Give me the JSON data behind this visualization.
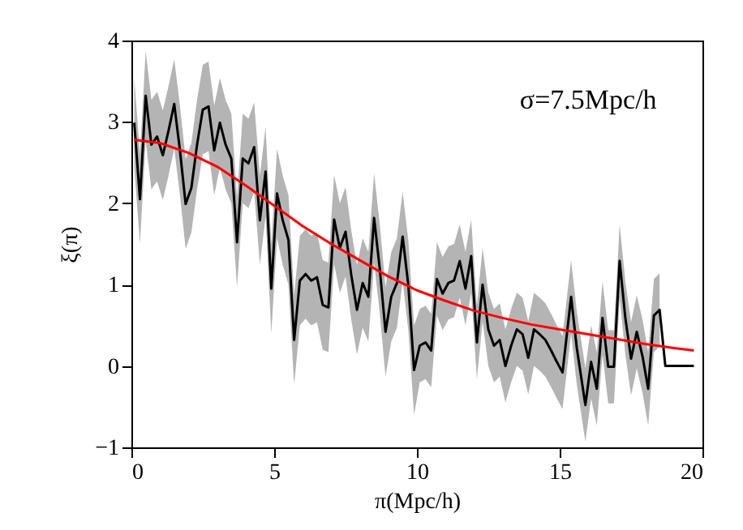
{
  "chart_data": {
    "type": "line",
    "xlabel": "π(Mpc/h)",
    "ylabel": "ξ(π)",
    "annotations": [
      "σ=7.5Mpc/h"
    ],
    "xlim": [
      0,
      20
    ],
    "xticks": [
      0,
      5,
      10,
      15,
      20
    ],
    "ylim": [
      -1,
      4
    ],
    "yticks": [
      -1,
      0,
      1,
      2,
      3,
      4
    ],
    "grid": false,
    "series": [
      {
        "color": "#000000",
        "x": [
          0.1,
          0.3,
          0.5,
          0.7,
          0.9,
          1.1,
          1.3,
          1.5,
          1.7,
          1.9,
          2.1,
          2.3,
          2.5,
          2.7,
          2.9,
          3.1,
          3.3,
          3.5,
          3.7,
          3.9,
          4.1,
          4.3,
          4.5,
          4.7,
          4.9,
          5.1,
          5.3,
          5.5,
          5.7,
          5.9,
          6.1,
          6.3,
          6.5,
          6.7,
          6.9,
          7.1,
          7.3,
          7.5,
          7.7,
          7.9,
          8.1,
          8.3,
          8.5,
          8.7,
          8.9,
          9.1,
          9.3,
          9.5,
          9.7,
          9.9,
          10.1,
          10.3,
          10.5,
          10.7,
          10.9,
          11.1,
          11.3,
          11.5,
          11.7,
          11.9,
          12.1,
          12.3,
          12.5,
          12.7,
          12.9,
          13.1,
          13.3,
          13.5,
          13.7,
          13.9,
          14.1,
          14.3,
          14.5,
          14.7,
          14.9,
          15.1,
          15.4,
          15.6,
          15.9,
          16.1,
          16.3,
          16.5,
          16.7,
          16.9,
          17.1,
          17.3,
          17.5,
          17.7,
          17.9,
          18.1,
          18.3,
          18.5,
          18.7,
          19.7
        ],
        "values": [
          2.99,
          2.05,
          3.32,
          2.72,
          2.82,
          2.59,
          2.89,
          3.22,
          2.65,
          1.99,
          2.19,
          2.72,
          3.15,
          3.19,
          2.65,
          2.99,
          2.72,
          2.55,
          1.52,
          2.55,
          2.49,
          2.69,
          1.79,
          2.39,
          0.95,
          2.12,
          1.79,
          1.55,
          0.32,
          1.05,
          1.13,
          1.05,
          1.09,
          0.75,
          0.72,
          1.8,
          1.45,
          1.65,
          1.12,
          0.69,
          1.02,
          0.85,
          1.82,
          1.19,
          0.42,
          0.85,
          1.02,
          1.59,
          0.99,
          -0.05,
          0.25,
          0.29,
          0.19,
          1.07,
          0.89,
          1.02,
          1.05,
          1.29,
          0.95,
          1.35,
          0.29,
          1.0,
          0.45,
          0.25,
          0.32,
          0.0,
          0.25,
          0.45,
          0.39,
          0.1,
          0.45,
          0.39,
          0.32,
          0.19,
          0.05,
          -0.08,
          0.85,
          0.22,
          -0.48,
          0.05,
          -0.28,
          0.59,
          -0.01,
          -0.01,
          1.29,
          0.59,
          0.09,
          0.42,
          0.12,
          -0.28,
          0.62,
          0.69,
          0.0,
          0.0
        ],
        "lower": [
          2.44,
          1.5,
          2.77,
          2.17,
          2.27,
          2.04,
          2.34,
          2.67,
          2.1,
          1.44,
          1.64,
          2.17,
          2.6,
          2.64,
          2.1,
          2.44,
          2.17,
          2.0,
          0.97,
          2.0,
          1.94,
          2.14,
          1.24,
          1.84,
          0.4,
          1.57,
          1.24,
          1.0,
          -0.23,
          0.5,
          0.58,
          0.5,
          0.54,
          0.2,
          0.17,
          1.25,
          0.9,
          1.1,
          0.57,
          0.14,
          0.47,
          0.3,
          1.27,
          0.64,
          -0.13,
          0.3,
          0.47,
          1.04,
          0.44,
          -0.6,
          -0.2,
          -0.16,
          -0.26,
          0.62,
          0.44,
          0.57,
          0.6,
          0.84,
          0.5,
          0.9,
          -0.16,
          0.55,
          0.0,
          -0.2,
          -0.13,
          -0.45,
          -0.2,
          0.0,
          -0.06,
          -0.35,
          0.0,
          -0.06,
          -0.13,
          -0.26,
          -0.4,
          -0.53,
          0.4,
          -0.23,
          -0.93,
          -0.4,
          -0.73,
          0.14,
          -0.46,
          -0.46,
          0.84,
          0.14,
          -0.36,
          -0.03,
          -0.33,
          -0.73,
          0.17,
          0.24,
          null,
          null
        ],
        "upper": [
          3.54,
          2.6,
          3.87,
          3.27,
          3.37,
          3.14,
          3.44,
          3.77,
          3.2,
          2.54,
          2.74,
          3.27,
          3.7,
          3.74,
          3.2,
          3.54,
          3.27,
          3.1,
          2.07,
          3.1,
          3.04,
          3.24,
          2.34,
          2.94,
          1.5,
          2.67,
          2.34,
          2.1,
          0.87,
          1.6,
          1.68,
          1.6,
          1.64,
          1.3,
          1.27,
          2.35,
          2.0,
          2.2,
          1.67,
          1.24,
          1.57,
          1.4,
          2.37,
          1.74,
          0.97,
          1.4,
          1.57,
          2.14,
          1.54,
          0.5,
          0.7,
          0.74,
          0.64,
          1.52,
          1.34,
          1.47,
          1.5,
          1.74,
          1.4,
          1.8,
          0.74,
          1.45,
          0.9,
          0.7,
          0.77,
          0.45,
          0.7,
          0.9,
          0.84,
          0.55,
          0.9,
          0.84,
          0.77,
          0.64,
          0.5,
          0.37,
          1.3,
          0.67,
          -0.03,
          0.5,
          0.17,
          1.04,
          0.44,
          0.44,
          1.74,
          1.04,
          0.54,
          0.87,
          0.57,
          0.17,
          1.07,
          1.14,
          null,
          null
        ]
      },
      {
        "color": "#ff0000",
        "x": [
          0.1,
          1,
          2,
          3,
          4,
          5,
          6,
          7,
          8,
          9,
          10,
          11,
          12,
          13,
          14,
          15,
          16,
          17,
          18,
          19,
          19.7
        ],
        "values": [
          2.78,
          2.74,
          2.62,
          2.45,
          2.22,
          1.97,
          1.72,
          1.5,
          1.3,
          1.1,
          0.93,
          0.8,
          0.68,
          0.59,
          0.51,
          0.45,
          0.39,
          0.33,
          0.27,
          0.22,
          0.19
        ]
      }
    ]
  }
}
